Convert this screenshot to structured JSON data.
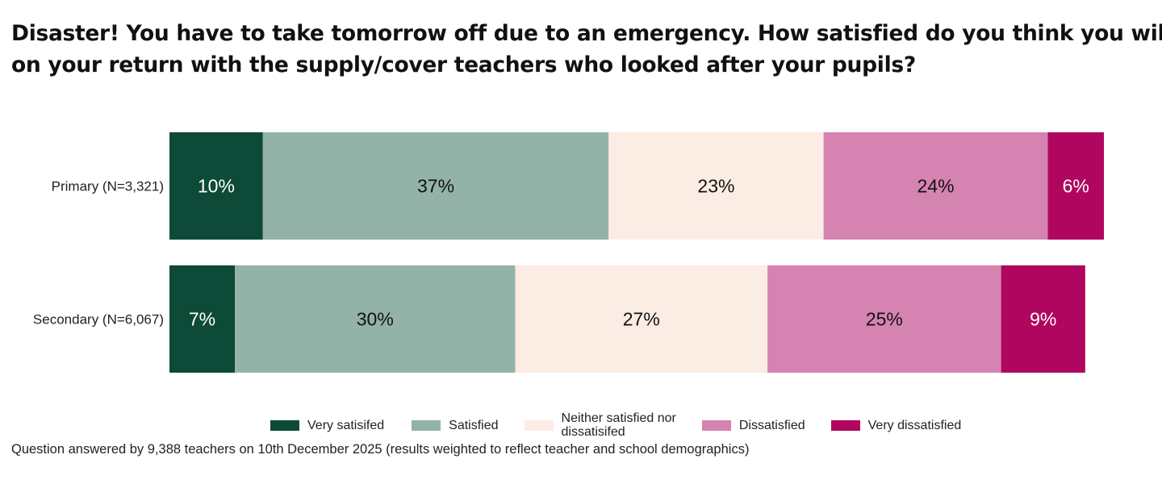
{
  "title_lines": [
    "Disaster! You have to take tomorrow off due to an emergency. How satisfied do you think you will be",
    "on your return with the supply/cover teachers who looked after your pupils?"
  ],
  "footnote": "Question answered by 9,388 teachers on 10th December 2025 (results weighted to reflect teacher and school demographics)",
  "chart_data": {
    "type": "bar",
    "orientation": "horizontal",
    "stacked": true,
    "stack_total": 100,
    "categories": [
      "Primary (N=3,321)",
      "Secondary (N=6,067)"
    ],
    "series": [
      {
        "name": "Very satisifed",
        "values": [
          10,
          7
        ],
        "labels": [
          "10%",
          "7%"
        ],
        "color": "#0d4a37",
        "label_color": "#ffffff"
      },
      {
        "name": "Satisfied",
        "values": [
          37,
          30
        ],
        "labels": [
          "37%",
          "30%"
        ],
        "color": "#93b3a8",
        "label_color": "#111111"
      },
      {
        "name": "Neither satisfied nor dissatisifed",
        "values": [
          23,
          27
        ],
        "labels": [
          "23%",
          "27%"
        ],
        "color": "#fbece4",
        "label_color": "#111111"
      },
      {
        "name": "Dissatisfied",
        "values": [
          24,
          25
        ],
        "labels": [
          "24%",
          "25%"
        ],
        "color": "#d583b1",
        "label_color": "#111111"
      },
      {
        "name": "Very dissatisfied",
        "values": [
          6,
          9
        ],
        "labels": [
          "6%",
          "9%"
        ],
        "color": "#b0065f",
        "label_color": "#ffffff"
      }
    ],
    "legend_position": "bottom",
    "grid": false
  },
  "legend": [
    {
      "label_lines": [
        "Very satisifed"
      ],
      "color": "#0d4a37"
    },
    {
      "label_lines": [
        "Satisfied"
      ],
      "color": "#93b3a8"
    },
    {
      "label_lines": [
        "Neither satisfied nor",
        "dissatisifed"
      ],
      "color": "#fbece4"
    },
    {
      "label_lines": [
        "Dissatisfied"
      ],
      "color": "#d583b1"
    },
    {
      "label_lines": [
        "Very dissatisfied"
      ],
      "color": "#b0065f"
    }
  ]
}
